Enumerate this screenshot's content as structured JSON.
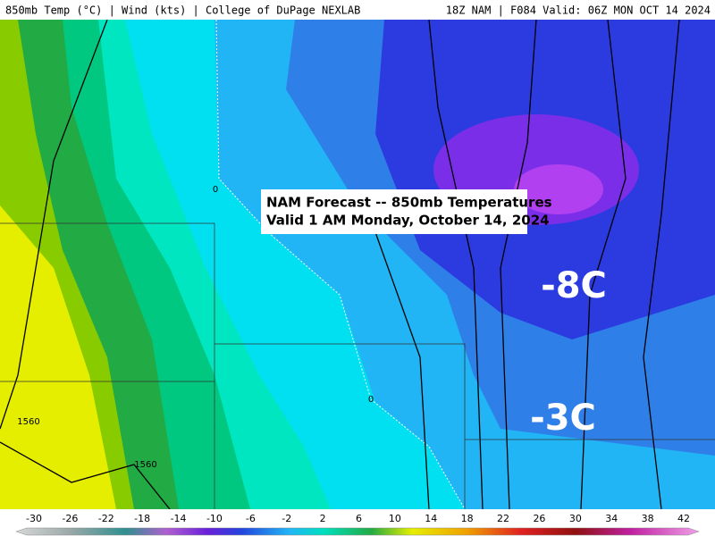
{
  "header": {
    "left": "850mb Temp (°C) | Wind (kts) | College of DuPage NEXLAB",
    "right": "18Z NAM | F084 Valid: 06Z MON OCT 14 2024"
  },
  "annotation": {
    "lines": [
      "NAM Forecast -- 850mb Temperatures",
      "Valid 1 AM Monday, October 14, 2024"
    ]
  },
  "map_labels": [
    "-8C",
    "-3C"
  ],
  "contour_labels": [
    "0",
    "0",
    "1560",
    "1560"
  ],
  "colorbar": {
    "ticks": [
      -30,
      -26,
      -22,
      -18,
      -14,
      -10,
      -6,
      -2,
      2,
      6,
      10,
      14,
      18,
      22,
      26,
      30,
      34,
      38,
      42
    ]
  }
}
